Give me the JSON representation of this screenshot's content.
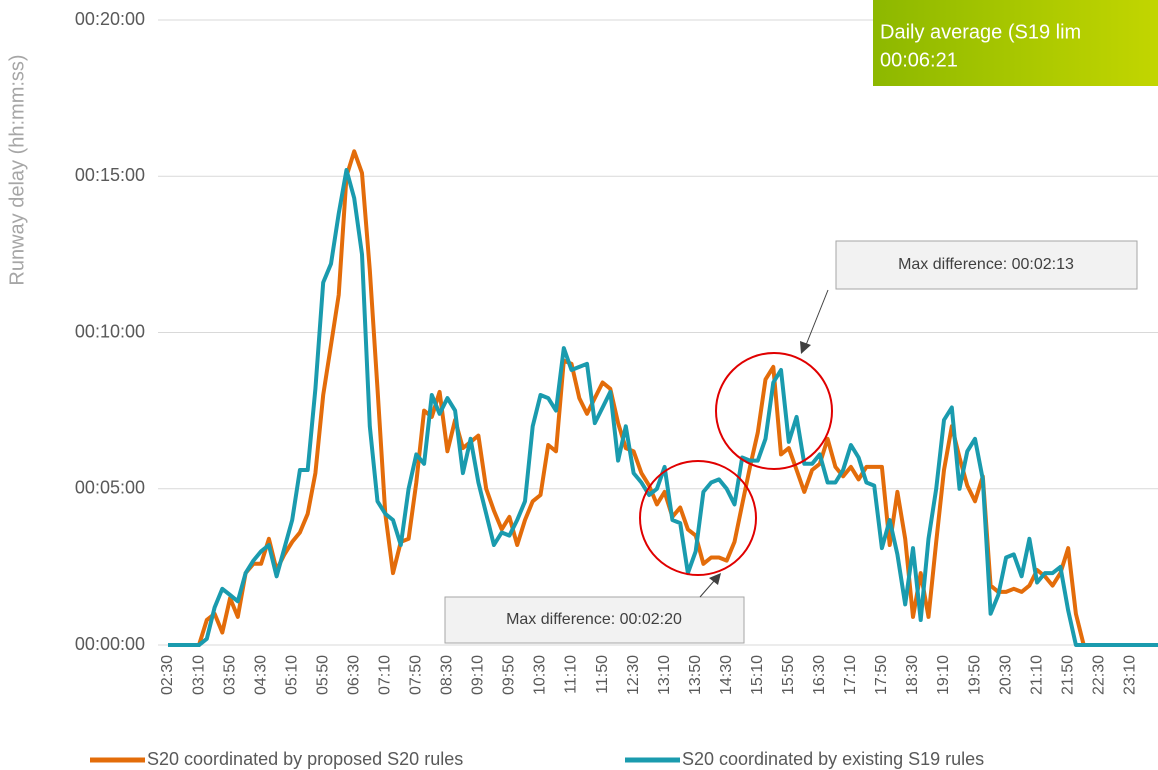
{
  "chart_data": {
    "type": "line",
    "y_label": "Runway delay (hh:mm:ss)",
    "annotations": [
      "Daily average (S19 lim",
      "00:06:21",
      "Max difference: 00:02:13",
      "Max difference: 00:02:20"
    ],
    "categories": [
      "02:30",
      null,
      null,
      null,
      "03:10",
      null,
      null,
      null,
      "03:50",
      null,
      null,
      null,
      "04:30",
      null,
      null,
      null,
      "05:10",
      null,
      null,
      null,
      "05:50",
      null,
      null,
      null,
      "06:30",
      null,
      null,
      null,
      "07:10",
      null,
      null,
      null,
      "07:50",
      null,
      null,
      null,
      "08:30",
      null,
      null,
      null,
      "09:10",
      null,
      null,
      null,
      "09:50",
      null,
      null,
      null,
      "10:30",
      null,
      null,
      null,
      "11:10",
      null,
      null,
      null,
      "11:50",
      null,
      null,
      null,
      "12:30",
      null,
      null,
      null,
      "13:10",
      null,
      null,
      null,
      "13:50",
      null,
      null,
      null,
      "14:30",
      null,
      null,
      null,
      "15:10",
      null,
      null,
      null,
      "15:50",
      null,
      null,
      null,
      "16:30",
      null,
      null,
      null,
      "17:10",
      null,
      null,
      null,
      "17:50",
      null,
      null,
      null,
      "18:30",
      null,
      null,
      null,
      "19:10",
      null,
      null,
      null,
      "19:50",
      null,
      null,
      null,
      "20:30",
      null,
      null,
      null,
      "21:10",
      null,
      null,
      null,
      "21:50",
      null,
      null,
      null,
      "22:30",
      null,
      null,
      null,
      "23:10",
      null,
      null,
      null,
      null
    ],
    "series": [
      {
        "name": "S20 coordinated by proposed S20 rules",
        "color": "#e36c0a",
        "values": [
          0,
          0,
          0,
          0,
          0,
          0.8,
          1.0,
          0.4,
          1.5,
          0.9,
          2.3,
          2.6,
          2.6,
          3.4,
          2.4,
          2.9,
          3.3,
          3.6,
          4.2,
          5.5,
          8.0,
          9.6,
          11.2,
          15.0,
          15.8,
          15.1,
          12.0,
          8.2,
          4.2,
          2.3,
          3.3,
          3.4,
          5.2,
          7.5,
          7.3,
          8.1,
          6.2,
          7.2,
          6.3,
          6.5,
          6.7,
          5.0,
          4.3,
          3.7,
          4.1,
          3.2,
          4.0,
          4.6,
          4.8,
          6.4,
          6.2,
          9.1,
          9.0,
          7.9,
          7.4,
          7.9,
          8.4,
          8.2,
          7.1,
          6.3,
          6.2,
          5.5,
          5.1,
          4.5,
          4.9,
          4.1,
          4.4,
          3.7,
          3.5,
          2.6,
          2.8,
          2.8,
          2.7,
          3.3,
          4.5,
          5.7,
          6.8,
          8.5,
          8.9,
          6.1,
          6.3,
          5.6,
          4.9,
          5.6,
          5.8,
          6.6,
          5.7,
          5.4,
          5.7,
          5.3,
          5.7,
          5.7,
          5.7,
          3.2,
          4.9,
          3.4,
          0.9,
          2.3,
          0.9,
          3.3,
          5.6,
          7.0,
          6.0,
          5.1,
          4.6,
          5.4,
          1.9,
          1.7,
          1.7,
          1.8,
          1.7,
          1.9,
          2.4,
          2.2,
          1.9,
          2.3,
          3.1,
          1.0,
          0,
          0,
          0,
          0,
          0,
          0,
          0,
          0,
          0,
          0,
          0
        ]
      },
      {
        "name": "S20 coordinated by existing S19 rules",
        "color": "#1a9bae",
        "values": [
          0,
          0,
          0,
          0,
          0,
          0.2,
          1.2,
          1.8,
          1.6,
          1.4,
          2.3,
          2.7,
          3.0,
          3.2,
          2.2,
          3.1,
          4.0,
          5.6,
          5.6,
          8.2,
          11.6,
          12.2,
          13.8,
          15.2,
          14.3,
          12.5,
          7.0,
          4.6,
          4.2,
          4.0,
          3.2,
          5.0,
          6.1,
          5.8,
          8.0,
          7.4,
          7.9,
          7.5,
          5.5,
          6.6,
          5.2,
          4.2,
          3.2,
          3.6,
          3.5,
          4.0,
          4.6,
          7.0,
          8.0,
          7.9,
          7.5,
          9.5,
          8.8,
          8.9,
          9.0,
          7.1,
          7.6,
          8.1,
          5.9,
          7.0,
          5.5,
          5.2,
          4.8,
          5.0,
          5.7,
          4.0,
          3.9,
          2.3,
          3.0,
          4.9,
          5.2,
          5.3,
          5.0,
          4.5,
          6.0,
          5.9,
          5.9,
          6.6,
          8.4,
          8.8,
          6.5,
          7.3,
          5.8,
          5.8,
          6.1,
          5.2,
          5.2,
          5.6,
          6.4,
          6.0,
          5.2,
          5.1,
          3.1,
          4.0,
          2.9,
          1.3,
          3.1,
          0.8,
          3.4,
          5.0,
          7.2,
          7.6,
          5.0,
          6.2,
          6.6,
          5.3,
          1.0,
          1.6,
          2.8,
          2.9,
          2.2,
          3.4,
          2.0,
          2.3,
          2.3,
          2.5,
          1.1,
          0,
          0,
          0,
          0,
          0,
          0,
          0,
          0,
          0,
          0,
          0,
          0
        ]
      }
    ],
    "ylim": [
      0,
      20
    ],
    "yticks": [
      {
        "value": 0,
        "label": "00:00:00"
      },
      {
        "value": 5,
        "label": "00:05:00"
      },
      {
        "value": 10,
        "label": "00:10:00"
      },
      {
        "value": 15,
        "label": "00:15:00"
      },
      {
        "value": 20,
        "label": "00:20:00"
      }
    ],
    "grid": true
  }
}
